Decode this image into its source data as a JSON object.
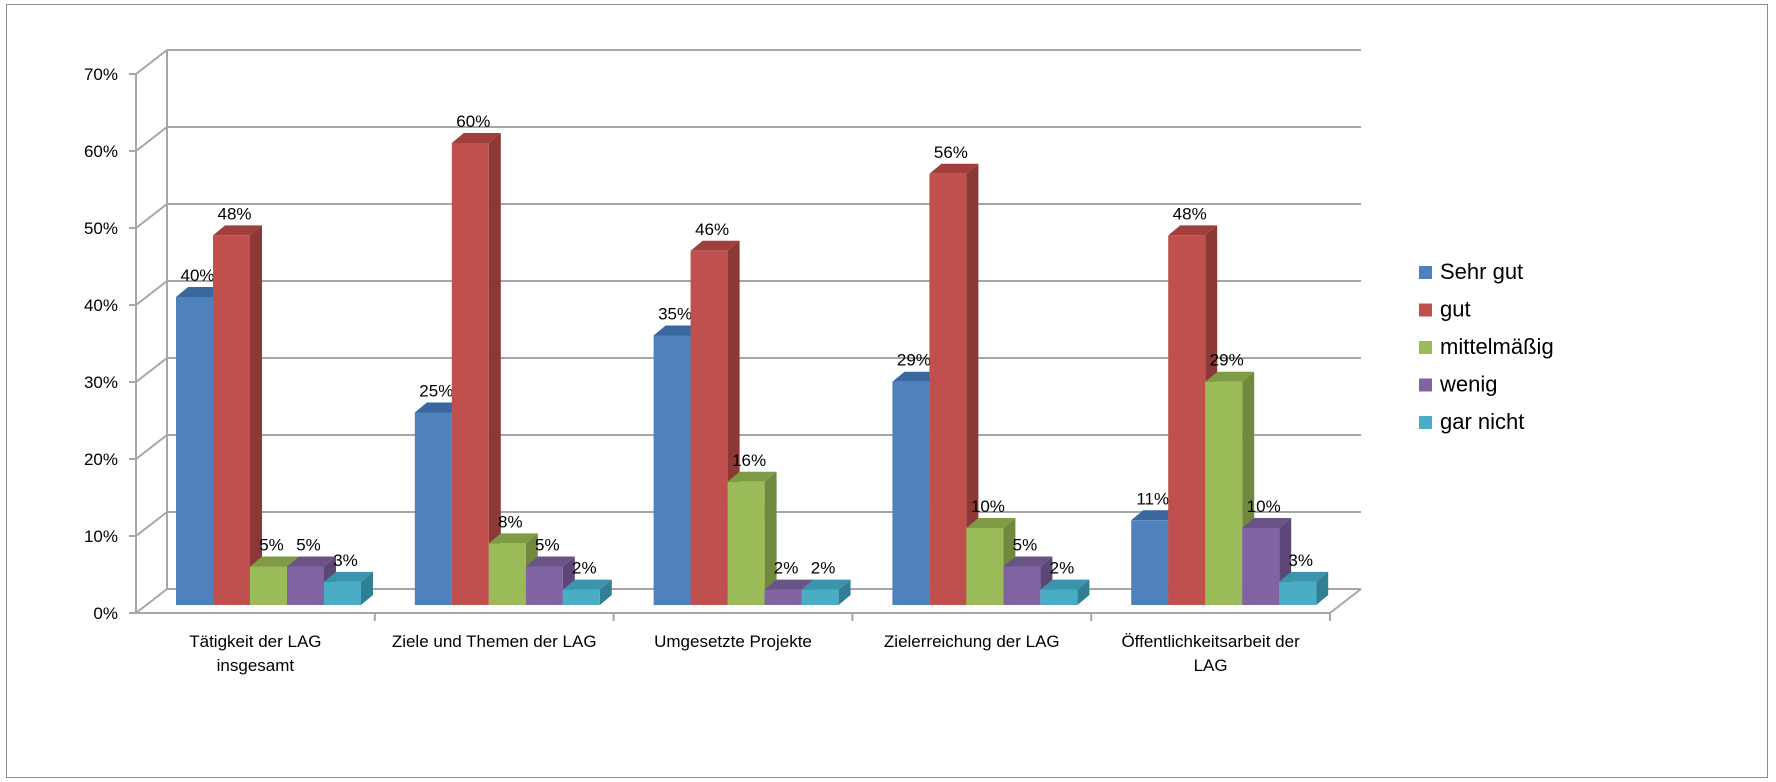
{
  "chart_data": {
    "type": "bar",
    "subtype": "3d-clustered-column",
    "title": "",
    "xlabel": "",
    "ylabel": "",
    "ylim": [
      0,
      70
    ],
    "y_ticks": [
      "0%",
      "10%",
      "20%",
      "30%",
      "40%",
      "50%",
      "60%",
      "70%"
    ],
    "y_unit": "%",
    "grid": true,
    "legend_position": "right",
    "categories": [
      [
        "Tätigkeit der LAG",
        "insgesamt"
      ],
      [
        "Ziele und Themen der LAG"
      ],
      [
        "Umgesetzte Projekte"
      ],
      [
        "Zielerreichung der LAG"
      ],
      [
        "Öffentlichkeitsarbeit der",
        "LAG"
      ]
    ],
    "series": [
      {
        "name": "Sehr gut",
        "color": "#4F81BD",
        "side": "#385D8A",
        "top": "#3A679E",
        "values": [
          40,
          25,
          35,
          29,
          11
        ]
      },
      {
        "name": "gut",
        "color": "#C0504D",
        "side": "#8C3836",
        "top": "#A03F3C",
        "values": [
          48,
          60,
          46,
          56,
          48
        ]
      },
      {
        "name": "mittelmäßig",
        "color": "#9BBB59",
        "side": "#71893F",
        "top": "#7F9B45",
        "values": [
          5,
          8,
          16,
          10,
          29
        ]
      },
      {
        "name": "wenig",
        "color": "#8064A2",
        "side": "#5C4776",
        "top": "#6A5387",
        "values": [
          5,
          5,
          2,
          5,
          10
        ]
      },
      {
        "name": "gar nicht",
        "color": "#4BACC6",
        "side": "#317F94",
        "top": "#3A94AD",
        "values": [
          3,
          2,
          2,
          2,
          3
        ]
      }
    ],
    "data_labels": [
      [
        "40%",
        "48%",
        "5%",
        "5%",
        "3%"
      ],
      [
        "25%",
        "60%",
        "8%",
        "5%",
        "2%"
      ],
      [
        "35%",
        "46%",
        "16%",
        "2%",
        "2%"
      ],
      [
        "29%",
        "56%",
        "10%",
        "5%",
        "2%"
      ],
      [
        "11%",
        "48%",
        "29%",
        "10%",
        "3%"
      ]
    ]
  }
}
